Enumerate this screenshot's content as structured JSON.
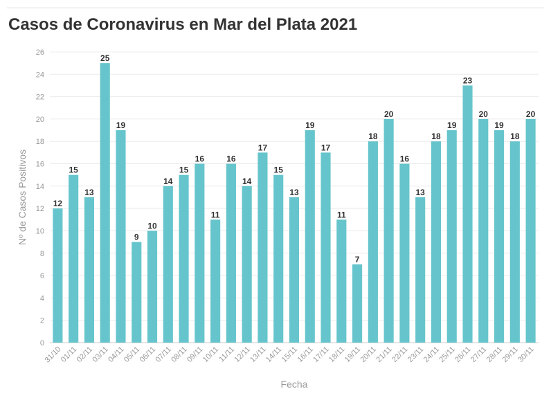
{
  "chart_data": {
    "type": "bar",
    "title": "Casos de Coronavirus en Mar del Plata 2021",
    "xlabel": "Fecha",
    "ylabel": "Nº de Casos Positivos",
    "ylim": [
      0,
      26
    ],
    "yticks": [
      0,
      2,
      4,
      6,
      8,
      10,
      12,
      14,
      16,
      18,
      20,
      22,
      24,
      26
    ],
    "grid": true,
    "categories": [
      "31/10",
      "01/11",
      "02/11",
      "03/11",
      "04/11",
      "05/11",
      "06/11",
      "07/11",
      "08/11",
      "09/11",
      "10/11",
      "11/11",
      "12/11",
      "13/11",
      "14/11",
      "15/11",
      "16/11",
      "17/11",
      "18/11",
      "19/11",
      "20/11",
      "21/11",
      "22/11",
      "23/11",
      "24/11",
      "25/11",
      "26/11",
      "27/11",
      "28/11",
      "29/11",
      "30/11"
    ],
    "values": [
      12,
      15,
      13,
      25,
      19,
      9,
      10,
      14,
      15,
      16,
      11,
      16,
      14,
      17,
      15,
      13,
      19,
      17,
      11,
      7,
      18,
      20,
      16,
      13,
      18,
      19,
      23,
      20,
      19,
      18,
      20
    ],
    "bar_color": "#66c5cc"
  }
}
